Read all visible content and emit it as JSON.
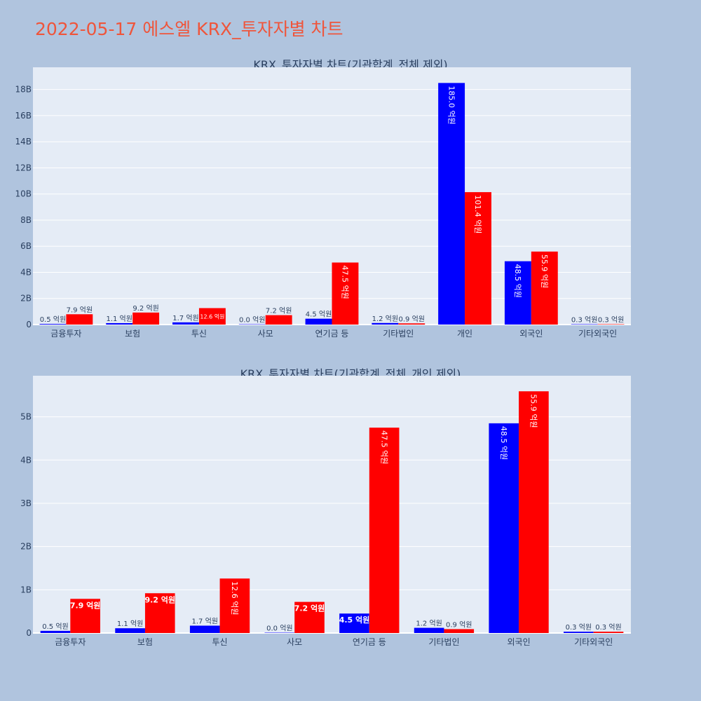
{
  "page_title": "2022-05-17 에스엘 KRX_투자자별 차트",
  "chart_data": [
    {
      "type": "bar",
      "title": "KRX_투자자별 차트(기관합계_전체 제외)",
      "categories": [
        "금융투자",
        "보험",
        "투신",
        "사모",
        "연기금 등",
        "기타법인",
        "개인",
        "외국인",
        "기타외국인"
      ],
      "series": [
        {
          "color": "#0000ff",
          "values": [
            0.05,
            0.11,
            0.17,
            0.0,
            0.45,
            0.12,
            18.5,
            4.85,
            0.03
          ],
          "labels": [
            "0.5 억원",
            "1.1 억원",
            "1.7 억원",
            "0.0 억원",
            "4.5 억원",
            "1.2 억원",
            "185.0 억원",
            "48.5 억원",
            "0.3 억원"
          ]
        },
        {
          "color": "#ff0000",
          "values": [
            0.79,
            0.92,
            1.26,
            0.72,
            4.75,
            0.09,
            10.14,
            5.59,
            0.03
          ],
          "labels": [
            "7.9 억원",
            "9.2 억원",
            "12.6 억원",
            "7.2 억원",
            "47.5 억원",
            "0.9 억원",
            "101.4 억원",
            "55.9 억원",
            "0.3 억원"
          ]
        }
      ],
      "y_ticks": [
        0,
        2,
        4,
        6,
        8,
        10,
        12,
        14,
        16,
        18
      ],
      "y_tick_labels": [
        "0",
        "2B",
        "4B",
        "6B",
        "8B",
        "10B",
        "12B",
        "14B",
        "16B",
        "18B"
      ],
      "y_unit": "B",
      "ylim": [
        0,
        19.7
      ],
      "grid": true
    },
    {
      "type": "bar",
      "title": "KRX_투자자별 차트(기관합계_전체_개인 제외)",
      "categories": [
        "금융투자",
        "보험",
        "투신",
        "사모",
        "연기금 등",
        "기타법인",
        "외국인",
        "기타외국인"
      ],
      "series": [
        {
          "color": "#0000ff",
          "values": [
            0.05,
            0.11,
            0.17,
            0.0,
            0.45,
            0.12,
            4.85,
            0.03
          ],
          "labels": [
            "0.5 억원",
            "1.1 억원",
            "1.7 억원",
            "0.0 억원",
            "4.5 억원",
            "1.2 억원",
            "48.5 억원",
            "0.3 억원"
          ]
        },
        {
          "color": "#ff0000",
          "values": [
            0.79,
            0.92,
            1.26,
            0.72,
            4.75,
            0.09,
            5.59,
            0.03
          ],
          "labels": [
            "7.9 억원",
            "9.2 억원",
            "12.6 억원",
            "7.2 억원",
            "47.5 억원",
            "0.9 억원",
            "55.9 억원",
            "0.3 억원"
          ]
        }
      ],
      "y_ticks": [
        0,
        1,
        2,
        3,
        4,
        5
      ],
      "y_tick_labels": [
        "0",
        "1B",
        "2B",
        "3B",
        "4B",
        "5B"
      ],
      "y_unit": "B",
      "ylim": [
        0,
        5.95
      ],
      "grid": true
    }
  ]
}
